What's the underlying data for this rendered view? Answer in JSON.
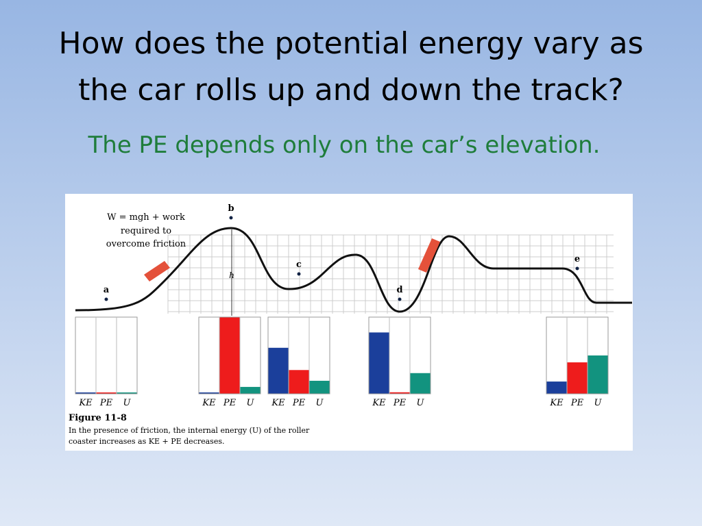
{
  "header": {
    "title_lines": [
      "How does the potential energy vary as",
      "the car rolls up and down the track?"
    ],
    "subtitle": "The PE depends only on the car’s elevation."
  },
  "figure": {
    "annotation_lines": [
      "W = mgh + work",
      "required to",
      "overcome friction"
    ],
    "height_label": "h",
    "points": [
      "a",
      "b",
      "c",
      "d",
      "e"
    ],
    "bar_labels": [
      "KE",
      "PE",
      "U"
    ],
    "bar_colors": [
      "#1b3f9b",
      "#ee1c1c",
      "#12937f"
    ],
    "bar_groups": [
      [
        0,
        0,
        0
      ],
      [
        0,
        100,
        9
      ],
      [
        60,
        31,
        17
      ],
      [
        80,
        2,
        27
      ],
      [
        16,
        41,
        50
      ]
    ],
    "caption_title": "Figure 11-8",
    "caption_lines": [
      "In the presence of friction, the internal energy (U) of the roller",
      "coaster increases as KE + PE decreases."
    ]
  }
}
